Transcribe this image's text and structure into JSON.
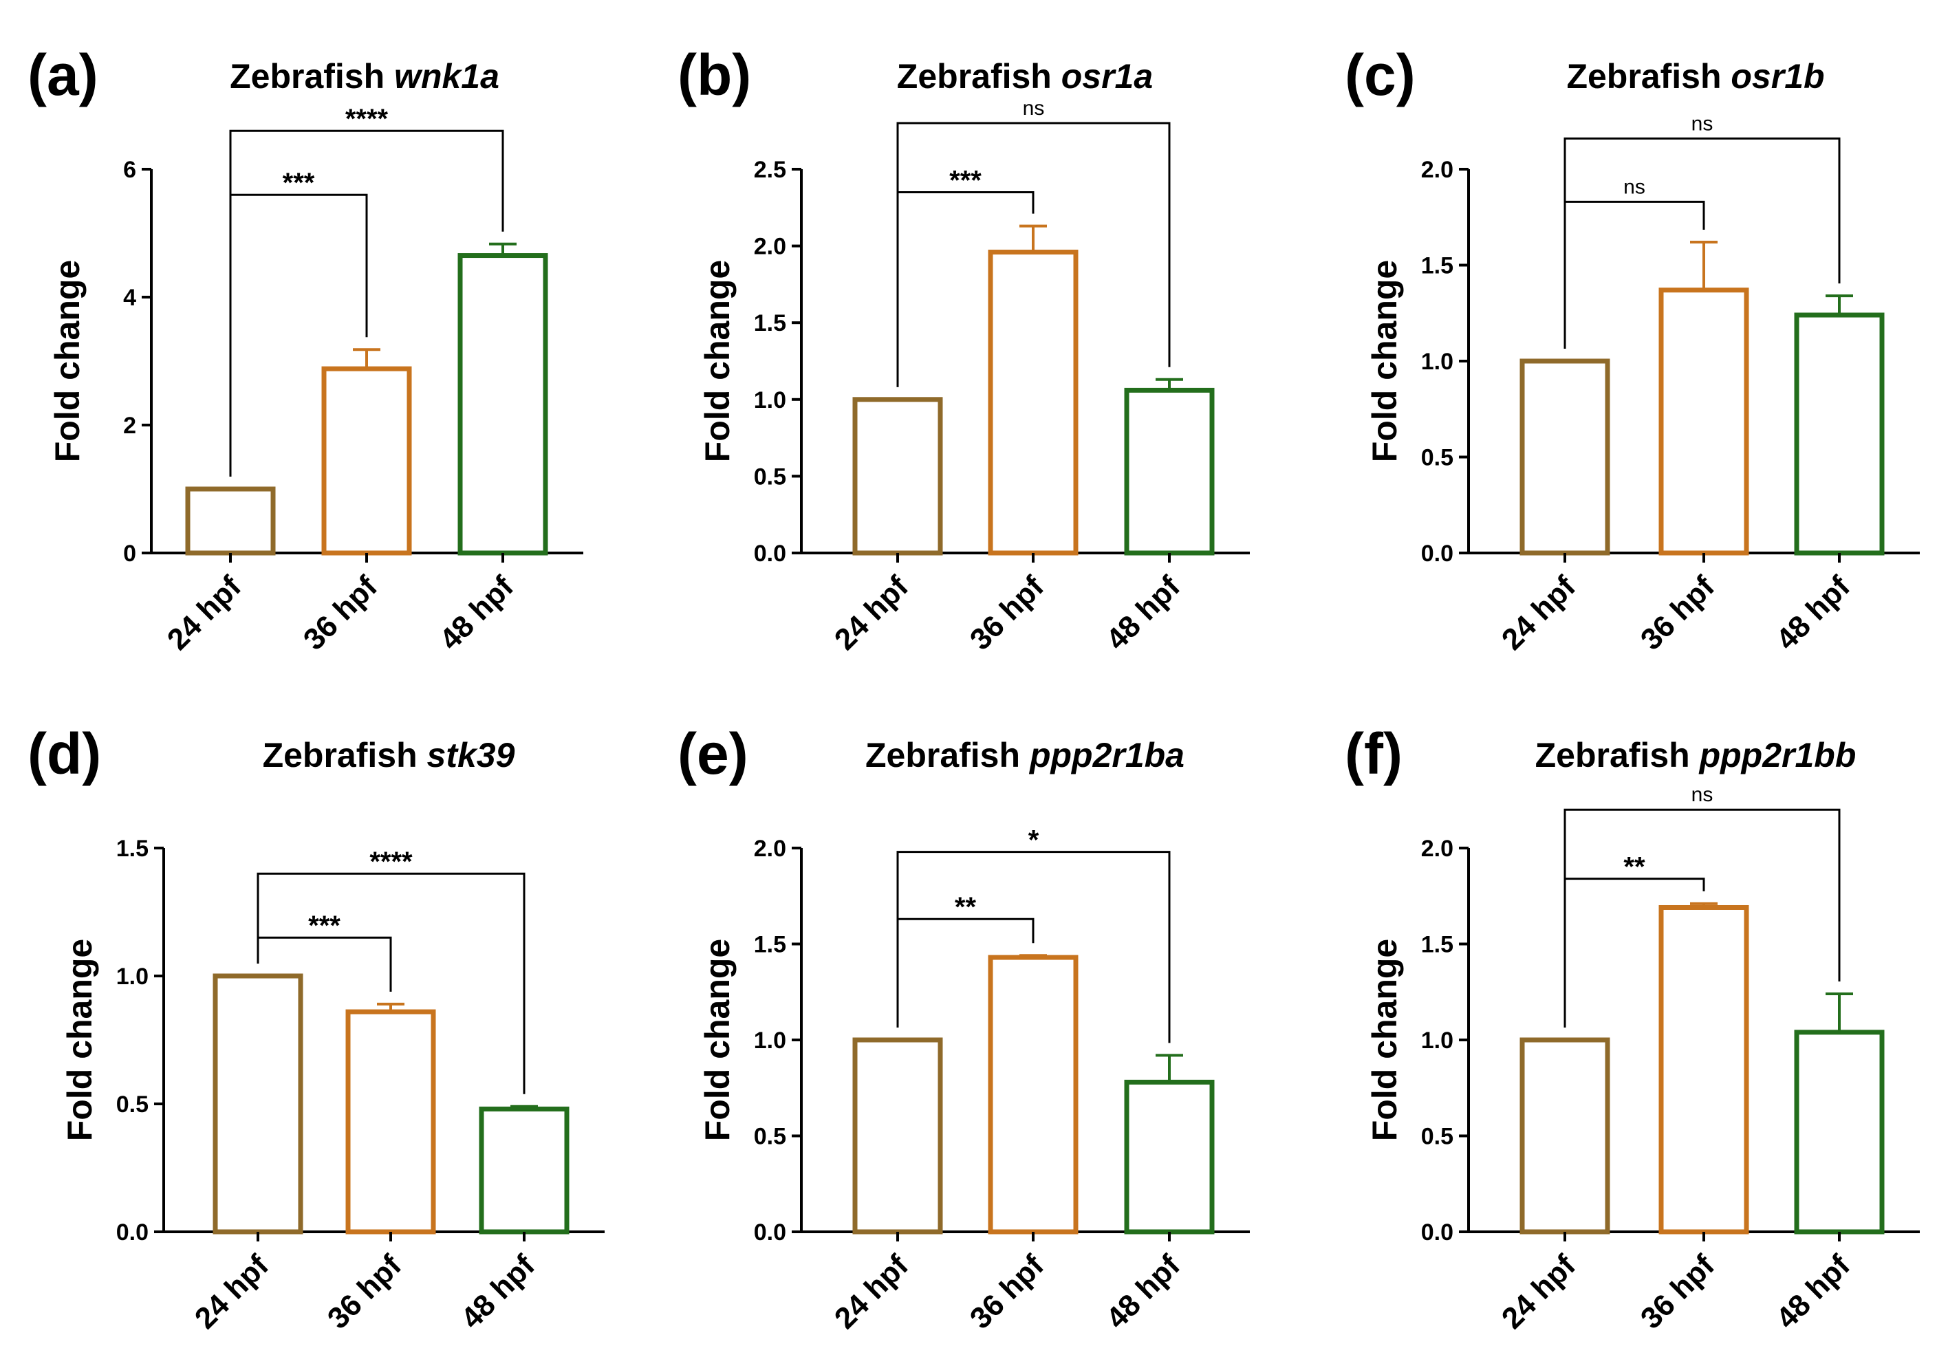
{
  "figure": {
    "common": {
      "ylabel": "Fold change",
      "categories": [
        "24 hpf",
        "36 hpf",
        "48 hpf"
      ],
      "colors": [
        "#8f6a2a",
        "#c8741e",
        "#236e1c"
      ]
    },
    "panels": [
      {
        "letter": "(a)",
        "title_prefix": "Zebrafish ",
        "title_gene": "wnk1a",
        "chart_data": {
          "type": "bar",
          "categories": [
            "24 hpf",
            "36 hpf",
            "48 hpf"
          ],
          "values": [
            1.0,
            2.88,
            4.65
          ],
          "errors": [
            0,
            0.3,
            0.18
          ],
          "ylim": [
            0,
            6
          ],
          "yticks": [
            0,
            2,
            4,
            6
          ],
          "ytick_labels": [
            "0",
            "2",
            "4",
            "6"
          ],
          "ylabel": "Fold change",
          "title": "Zebrafish wnk1a",
          "significance": [
            {
              "from": 0,
              "to": 1,
              "label": "***",
              "level": 5.6
            },
            {
              "from": 0,
              "to": 2,
              "label": "****",
              "level": 6.6
            }
          ]
        }
      },
      {
        "letter": "(b)",
        "title_prefix": "Zebrafish ",
        "title_gene": "osr1a",
        "chart_data": {
          "type": "bar",
          "categories": [
            "24 hpf",
            "36 hpf",
            "48 hpf"
          ],
          "values": [
            1.0,
            1.96,
            1.06
          ],
          "errors": [
            0,
            0.17,
            0.07
          ],
          "ylim": [
            0,
            2.5
          ],
          "yticks": [
            0,
            0.5,
            1.0,
            1.5,
            2.0,
            2.5
          ],
          "ytick_labels": [
            "0.0",
            "0.5",
            "1.0",
            "1.5",
            "2.0",
            "2.5"
          ],
          "ylabel": "Fold change",
          "title": "Zebrafish osr1a",
          "significance": [
            {
              "from": 0,
              "to": 1,
              "label": "***",
              "level": 2.35
            },
            {
              "from": 0,
              "to": 2,
              "label": "ns",
              "level": 2.8
            }
          ]
        }
      },
      {
        "letter": "(c)",
        "title_prefix": "Zebrafish ",
        "title_gene": "osr1b",
        "chart_data": {
          "type": "bar",
          "categories": [
            "24 hpf",
            "36 hpf",
            "48 hpf"
          ],
          "values": [
            1.0,
            1.37,
            1.24
          ],
          "errors": [
            0,
            0.25,
            0.1
          ],
          "ylim": [
            0,
            2.0
          ],
          "yticks": [
            0,
            0.5,
            1.0,
            1.5,
            2.0
          ],
          "ytick_labels": [
            "0.0",
            "0.5",
            "1.0",
            "1.5",
            "2.0"
          ],
          "ylabel": "Fold change",
          "title": "Zebrafish osr1b",
          "significance": [
            {
              "from": 0,
              "to": 1,
              "label": "ns",
              "level": 1.83
            },
            {
              "from": 0,
              "to": 2,
              "label": "ns",
              "level": 2.16
            }
          ]
        }
      },
      {
        "letter": "(d)",
        "title_prefix": "Zebrafish ",
        "title_gene": "stk39",
        "chart_data": {
          "type": "bar",
          "categories": [
            "24 hpf",
            "36 hpf",
            "48 hpf"
          ],
          "values": [
            1.0,
            0.86,
            0.48
          ],
          "errors": [
            0,
            0.03,
            0.01
          ],
          "ylim": [
            0,
            1.5
          ],
          "yticks": [
            0,
            0.5,
            1.0,
            1.5
          ],
          "ytick_labels": [
            "0.0",
            "0.5",
            "1.0",
            "1.5"
          ],
          "ylabel": "Fold change",
          "title": "Zebrafish stk39",
          "significance": [
            {
              "from": 0,
              "to": 1,
              "label": "***",
              "level": 1.15
            },
            {
              "from": 0,
              "to": 2,
              "label": "****",
              "level": 1.4
            }
          ]
        }
      },
      {
        "letter": "(e)",
        "title_prefix": "Zebrafish ",
        "title_gene": "ppp2r1ba",
        "chart_data": {
          "type": "bar",
          "categories": [
            "24 hpf",
            "36 hpf",
            "48 hpf"
          ],
          "values": [
            1.0,
            1.43,
            0.78
          ],
          "errors": [
            0,
            0.01,
            0.14
          ],
          "ylim": [
            0,
            2.0
          ],
          "yticks": [
            0,
            0.5,
            1.0,
            1.5,
            2.0
          ],
          "ytick_labels": [
            "0.0",
            "0.5",
            "1.0",
            "1.5",
            "2.0"
          ],
          "ylabel": "Fold change",
          "title": "Zebrafish ppp2r1ba",
          "significance": [
            {
              "from": 0,
              "to": 1,
              "label": "**",
              "level": 1.63
            },
            {
              "from": 0,
              "to": 2,
              "label": "*",
              "level": 1.98
            }
          ]
        }
      },
      {
        "letter": "(f)",
        "title_prefix": "Zebrafish ",
        "title_gene": "ppp2r1bb",
        "chart_data": {
          "type": "bar",
          "categories": [
            "24 hpf",
            "36 hpf",
            "48 hpf"
          ],
          "values": [
            1.0,
            1.69,
            1.04
          ],
          "errors": [
            0,
            0.02,
            0.2
          ],
          "ylim": [
            0,
            2.0
          ],
          "yticks": [
            0,
            0.5,
            1.0,
            1.5,
            2.0
          ],
          "ytick_labels": [
            "0.0",
            "0.5",
            "1.0",
            "1.5",
            "2.0"
          ],
          "ylabel": "Fold change",
          "title": "Zebrafish ppp2r1bb",
          "significance": [
            {
              "from": 0,
              "to": 1,
              "label": "**",
              "level": 1.84
            },
            {
              "from": 0,
              "to": 2,
              "label": "ns",
              "level": 2.2
            }
          ]
        }
      }
    ]
  }
}
